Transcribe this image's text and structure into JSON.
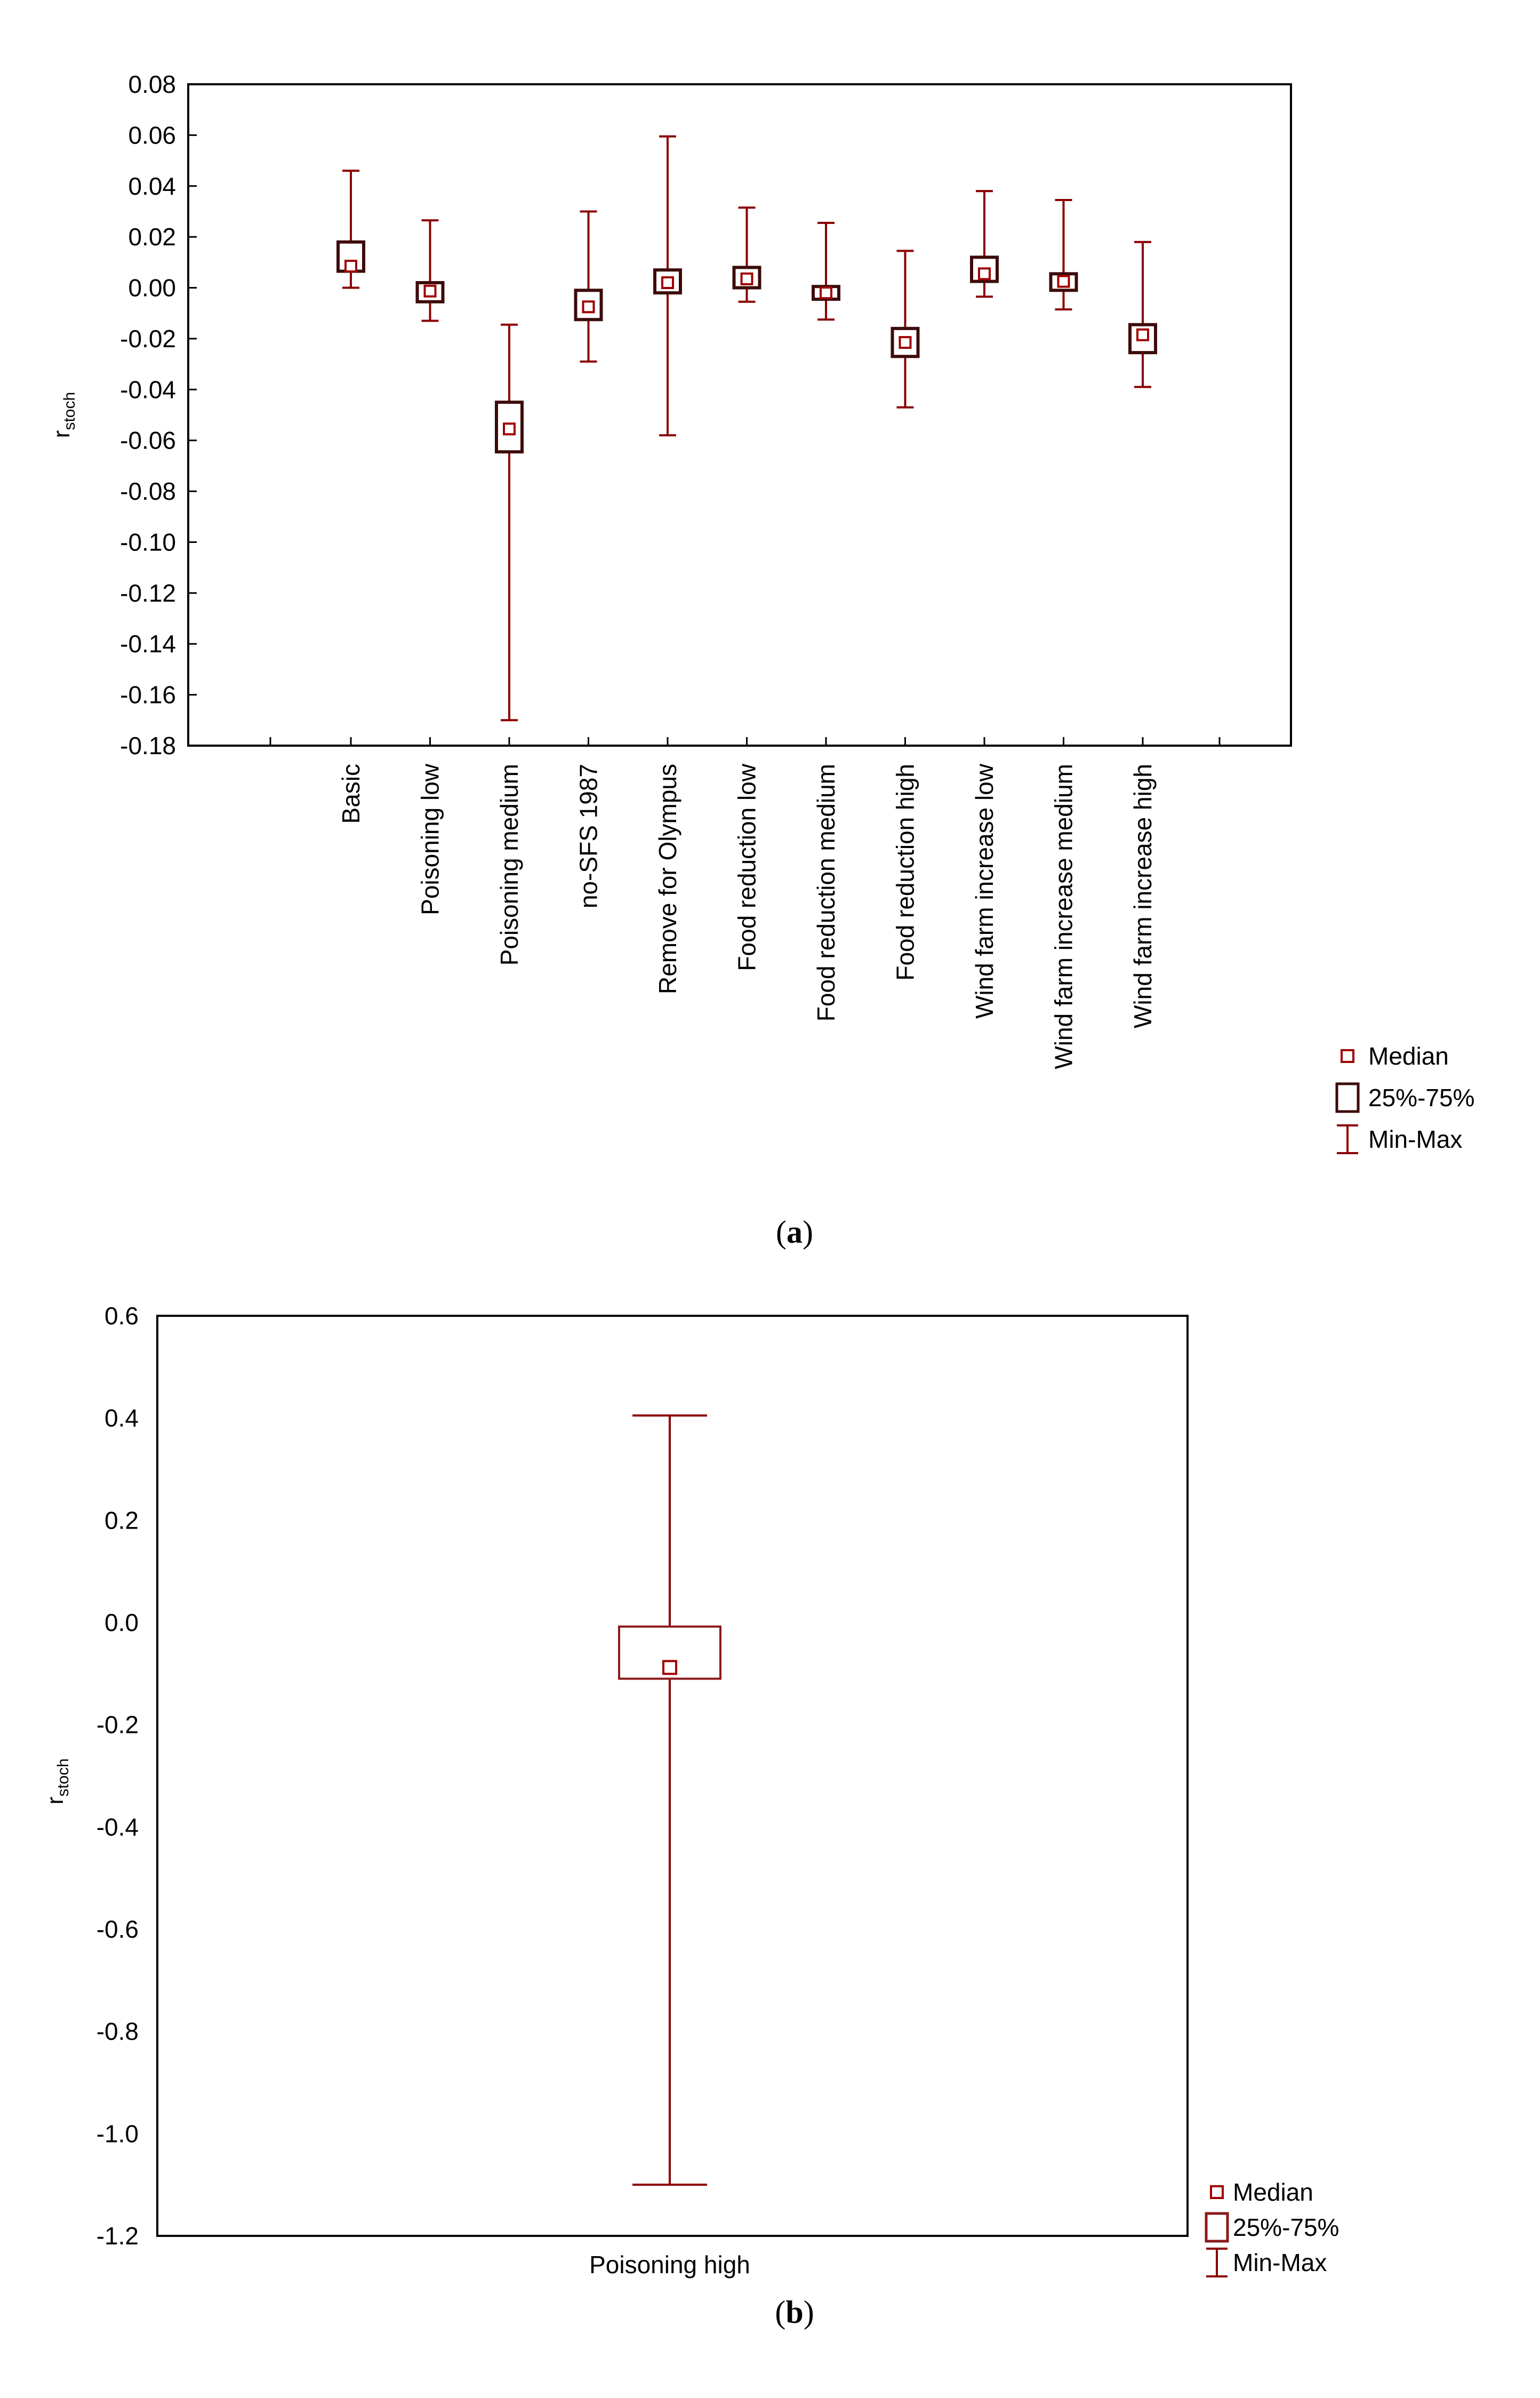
{
  "figure": {
    "panel_a_label": "a",
    "panel_b_label": "b"
  },
  "colors": {
    "whisker": "#8b0000",
    "box_a": "#3d0b0b",
    "box_b": "#8b1a1a",
    "median": "#a00000",
    "axis": "#000000"
  },
  "chart_data": [
    {
      "id": "a",
      "type": "boxplot",
      "ylabel": "r",
      "ylabel_sub": "stoch",
      "ylim": [
        -0.18,
        0.08
      ],
      "yticks": [
        "0.08",
        "0.06",
        "0.04",
        "0.02",
        "0.00",
        "-0.02",
        "-0.04",
        "-0.06",
        "-0.08",
        "-0.10",
        "-0.12",
        "-0.14",
        "-0.16",
        "-0.18"
      ],
      "categories": [
        "Basic",
        "Poisoning low",
        "Poisoning medium",
        "no-SFS 1987",
        "Remove for Olympus",
        "Food reduction low",
        "Food reduction medium",
        "Food reduction high",
        "Wind farm increase low",
        "Wind farm increase medium",
        "Wind farm increase high"
      ],
      "medians": [
        0.0085,
        -0.0013,
        -0.0555,
        -0.0075,
        0.002,
        0.0035,
        -0.002,
        -0.0215,
        0.0055,
        0.0025,
        -0.0185
      ],
      "q1": [
        0.0065,
        -0.0055,
        -0.0645,
        -0.0125,
        -0.002,
        0.0,
        -0.0045,
        -0.027,
        0.0025,
        -0.001,
        -0.0255
      ],
      "q3": [
        0.018,
        0.002,
        -0.045,
        -0.001,
        0.007,
        0.008,
        0.0005,
        -0.016,
        0.012,
        0.0055,
        -0.0145
      ],
      "mins": [
        0.0,
        -0.013,
        -0.17,
        -0.029,
        -0.058,
        -0.0055,
        -0.0125,
        -0.047,
        -0.0035,
        -0.0085,
        -0.039
      ],
      "maxs": [
        0.046,
        0.0265,
        -0.0145,
        0.03,
        0.0595,
        0.0315,
        0.0255,
        0.0145,
        0.038,
        0.0345,
        0.018
      ],
      "legend": [
        "Median",
        "25%-75%",
        "Min-Max"
      ],
      "legend_position": "right"
    },
    {
      "id": "b",
      "type": "boxplot",
      "ylabel": "r",
      "ylabel_sub": "stoch",
      "ylim": [
        -1.2,
        0.6
      ],
      "yticks": [
        "0.6",
        "0.4",
        "0.2",
        "0.0",
        "-0.2",
        "-0.4",
        "-0.6",
        "-0.8",
        "-1.0",
        "-1.2"
      ],
      "categories": [
        "Poisoning high"
      ],
      "medians": [
        -0.088
      ],
      "q1": [
        -0.11
      ],
      "q3": [
        -0.008
      ],
      "mins": [
        -1.1
      ],
      "maxs": [
        0.405
      ],
      "legend": [
        "Median",
        "25%-75%",
        "Min-Max"
      ],
      "legend_position": "bottom-right"
    }
  ]
}
